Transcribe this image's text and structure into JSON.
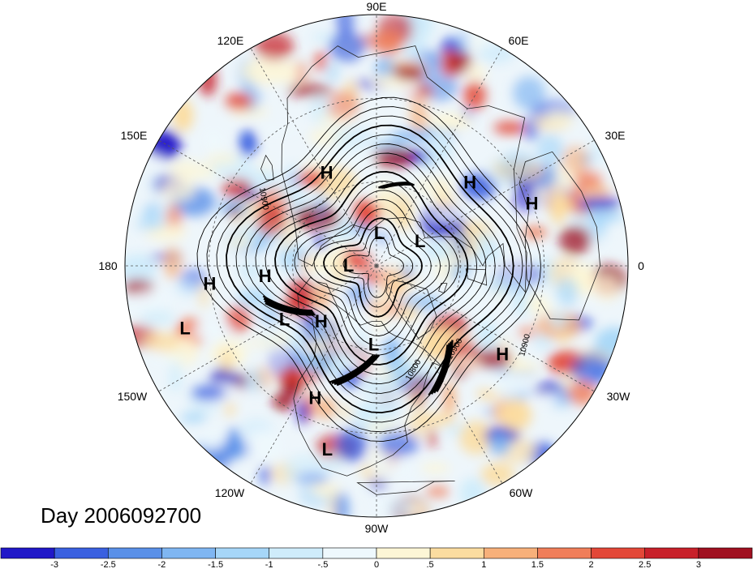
{
  "map": {
    "title": "Day 2006092700",
    "contour_labels": [
      "10900",
      "10900",
      "10900",
      "10800"
    ],
    "longitude_labels": [
      "90E",
      "60E",
      "30E",
      "0",
      "30W",
      "60W",
      "90W",
      "120W",
      "150W",
      "180",
      "150E",
      "120E"
    ],
    "pressure_centers": [
      {
        "type": "H",
        "lon": 118,
        "lat": 52
      },
      {
        "type": "H",
        "lon": 42,
        "lat": 45
      },
      {
        "type": "H",
        "lon": 22,
        "lat": 30
      },
      {
        "type": "L",
        "lon": 30,
        "lat": 72
      },
      {
        "type": "L",
        "lon": 85,
        "lat": 78
      },
      {
        "type": "L",
        "lon": 178,
        "lat": 80
      },
      {
        "type": "H",
        "lon": 185,
        "lat": 50
      },
      {
        "type": "H",
        "lon": 186,
        "lat": 30
      },
      {
        "type": "L",
        "lon": 198,
        "lat": 18
      },
      {
        "type": "L",
        "lon": 210,
        "lat": 52
      },
      {
        "type": "H",
        "lon": 225,
        "lat": 62
      },
      {
        "type": "L",
        "lon": 268,
        "lat": 62
      },
      {
        "type": "H",
        "lon": 245,
        "lat": 38
      },
      {
        "type": "L",
        "lon": 255,
        "lat": 22
      },
      {
        "type": "H",
        "lon": 325,
        "lat": 35
      }
    ],
    "colors": {
      "coast": "#222222",
      "grid": "#555555"
    }
  },
  "colorbar": {
    "tick_labels": [
      "-3",
      "-2.5",
      "-2",
      "-1.5",
      "-1",
      "-.5",
      "0",
      ".5",
      "1",
      "1.5",
      "2",
      "2.5",
      "3"
    ],
    "colors": [
      "#2018c8",
      "#3a60e0",
      "#5a90e8",
      "#7fb6f2",
      "#a6d6f8",
      "#cfecfb",
      "#eef8fd",
      "#fdf6d6",
      "#fbdca0",
      "#f7b07a",
      "#f07e5a",
      "#e34838",
      "#c8202a",
      "#a01020"
    ]
  }
}
